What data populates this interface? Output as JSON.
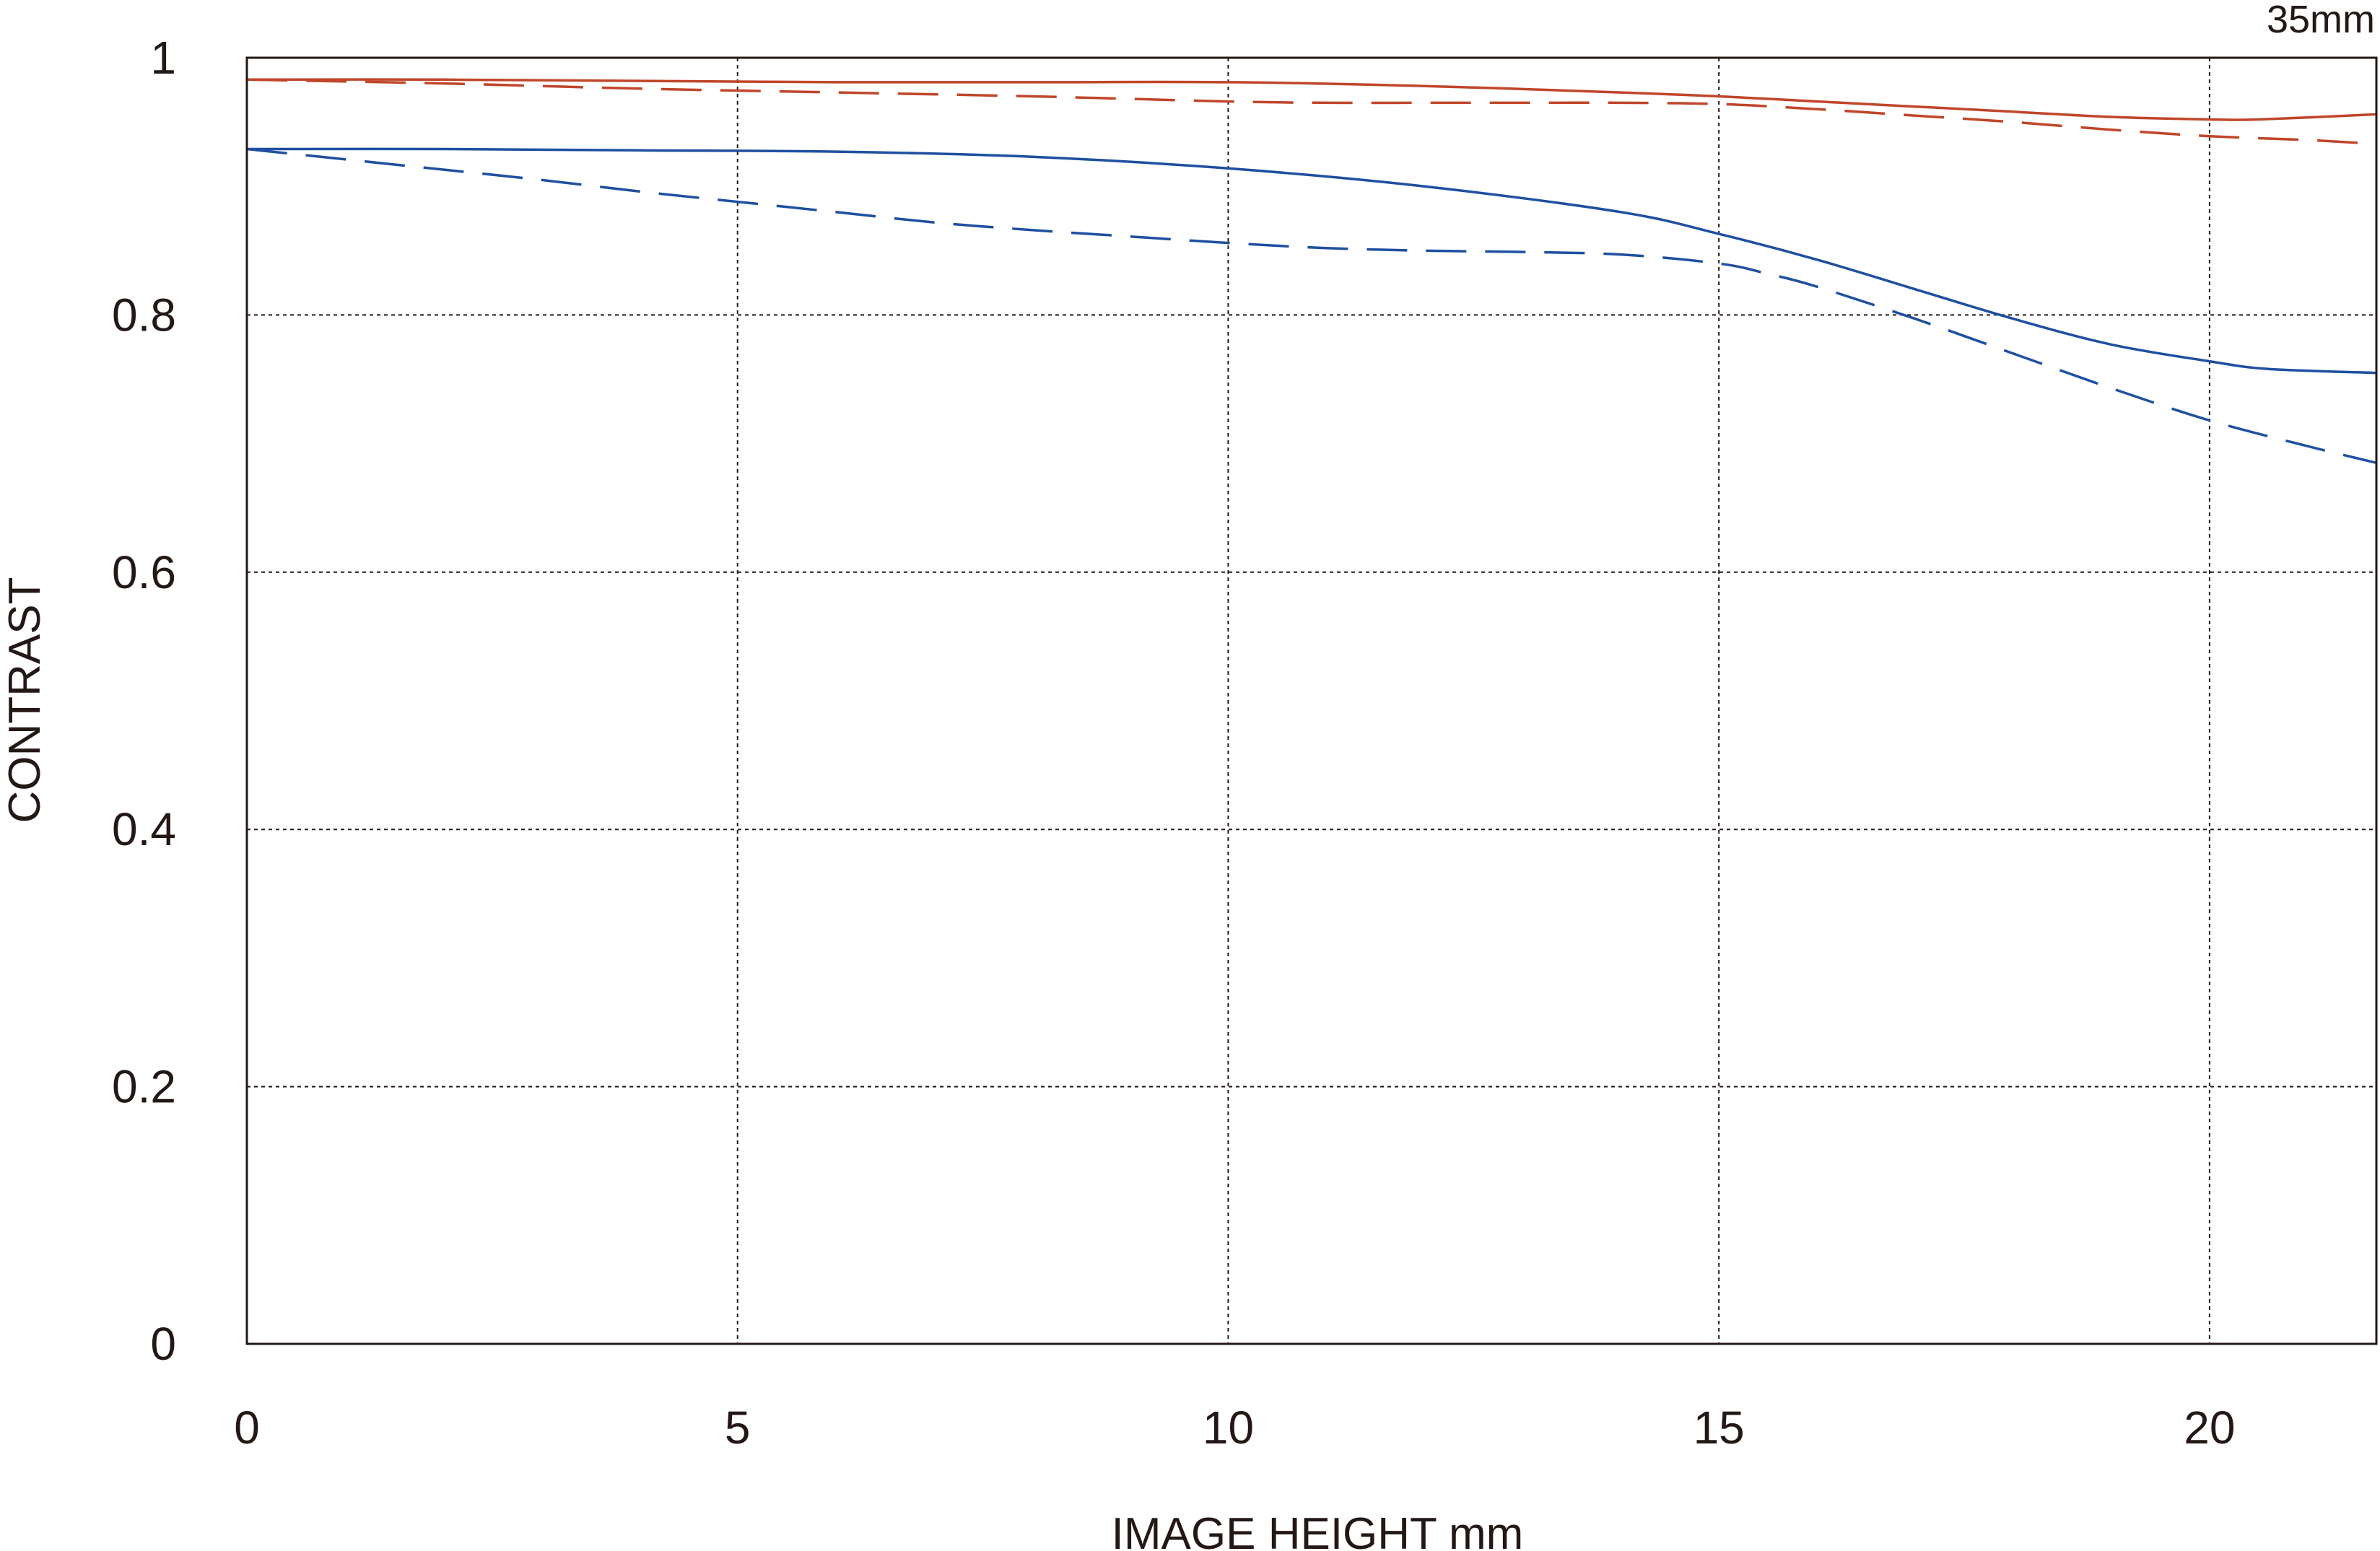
{
  "chart_data": {
    "type": "line",
    "title": "",
    "corner_label": "35mm",
    "xlabel": "IMAGE HEIGHT  mm",
    "ylabel": "CONTRAST",
    "xlim": [
      0,
      21.7
    ],
    "ylim": [
      0,
      1
    ],
    "x_ticks": [
      "0",
      "5",
      "10",
      "15",
      "20"
    ],
    "y_ticks": [
      "0",
      "0.2",
      "0.4",
      "0.6",
      "0.8",
      "1"
    ],
    "grid": true,
    "legend": "none",
    "series": [
      {
        "color": "#c0462a",
        "dash": "solid",
        "x": [
          0,
          2,
          4,
          6,
          8,
          10,
          12,
          14,
          15,
          16,
          17,
          18,
          19,
          20,
          20.5,
          21.7
        ],
        "y": [
          0.983,
          0.983,
          0.982,
          0.981,
          0.981,
          0.981,
          0.978,
          0.973,
          0.97,
          0.966,
          0.962,
          0.958,
          0.954,
          0.952,
          0.952,
          0.956
        ]
      },
      {
        "color": "#c0462a",
        "dash": "dashed",
        "x": [
          0,
          2,
          4,
          6,
          8,
          10,
          11,
          12,
          13,
          14,
          15,
          16,
          17,
          18,
          19,
          20,
          21,
          21.7
        ],
        "y": [
          0.983,
          0.98,
          0.976,
          0.973,
          0.97,
          0.966,
          0.965,
          0.965,
          0.965,
          0.965,
          0.964,
          0.96,
          0.955,
          0.95,
          0.944,
          0.939,
          0.936,
          0.933
        ]
      },
      {
        "color": "#1f4fa0",
        "dash": "solid",
        "x": [
          0,
          2,
          4,
          6,
          8,
          10,
          12,
          14,
          15,
          16,
          17,
          18,
          19,
          20,
          20.6,
          21.7
        ],
        "y": [
          0.929,
          0.929,
          0.928,
          0.927,
          0.923,
          0.914,
          0.9,
          0.88,
          0.863,
          0.843,
          0.82,
          0.797,
          0.777,
          0.764,
          0.758,
          0.755
        ]
      },
      {
        "color": "#1f4fa0",
        "dash": "dashed",
        "x": [
          0,
          1,
          2,
          3,
          4,
          5,
          6,
          7,
          8,
          9,
          10,
          11,
          12,
          13,
          14,
          15,
          15.5,
          16,
          17,
          18,
          19,
          20,
          21,
          21.7
        ],
        "y": [
          0.929,
          0.921,
          0.913,
          0.905,
          0.896,
          0.888,
          0.88,
          0.872,
          0.866,
          0.861,
          0.856,
          0.852,
          0.85,
          0.849,
          0.847,
          0.84,
          0.832,
          0.822,
          0.797,
          0.77,
          0.743,
          0.718,
          0.698,
          0.685
        ]
      }
    ]
  }
}
